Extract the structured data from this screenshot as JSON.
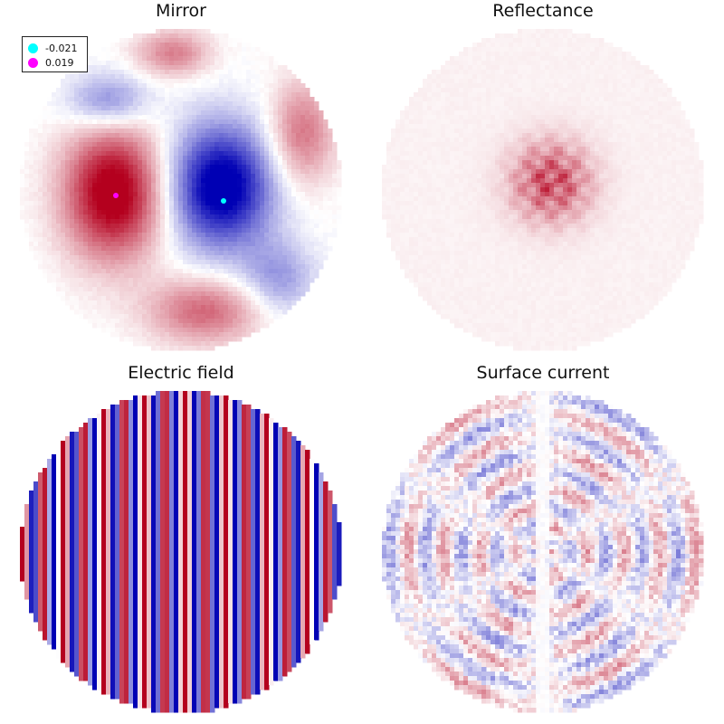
{
  "chart_data": [
    {
      "type": "heatmap",
      "title": "Mirror",
      "field": "mirror-surface-height",
      "colormap": [
        "#0000b4",
        "#ffffff",
        "#b4001e"
      ],
      "markers": [
        {
          "label": "-0.021",
          "color": "#00ffff"
        },
        {
          "label": "0.019",
          "color": "#ff00ff"
        }
      ]
    },
    {
      "type": "heatmap",
      "title": "Reflectance",
      "field": "central-speckle-reflectance",
      "colormap": [
        "#ffffff",
        "#b4001e"
      ]
    },
    {
      "type": "heatmap",
      "title": "Electric field",
      "field": "vertical-stripes",
      "colormap": [
        "#0000b4",
        "#ffffff",
        "#b4001e"
      ]
    },
    {
      "type": "heatmap",
      "title": "Surface current",
      "field": "ring-pattern-noise",
      "colormap": [
        "#0000b4",
        "#ffffff",
        "#b4001e"
      ]
    }
  ]
}
